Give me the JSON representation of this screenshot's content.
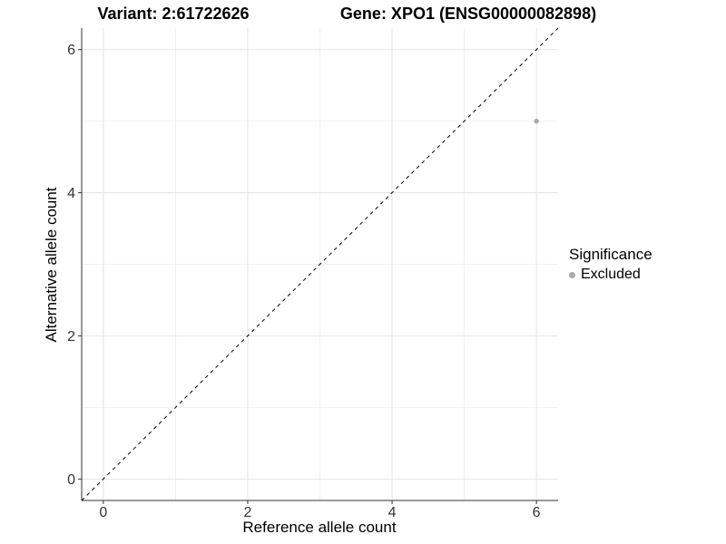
{
  "chart_data": {
    "type": "scatter",
    "title_left": "Variant: 2:61722626",
    "title_right": "Gene: XPO1 (ENSG00000082898)",
    "xlabel": "Reference allele count",
    "ylabel": "Alternative allele count",
    "xlim": [
      -0.3,
      6.3
    ],
    "ylim": [
      -0.3,
      6.3
    ],
    "x_ticks": [
      0,
      2,
      4,
      6
    ],
    "y_ticks": [
      0,
      2,
      4,
      6
    ],
    "x_minor_ticks": [
      1,
      3,
      5
    ],
    "y_minor_ticks": [
      1,
      3,
      5
    ],
    "grid": true,
    "reference_line": {
      "type": "identity",
      "style": "dashed",
      "color": "#000000"
    },
    "series": [
      {
        "name": "Excluded",
        "color": "#aaaaaa",
        "points": [
          {
            "x": 6,
            "y": 5
          }
        ]
      }
    ],
    "legend": {
      "title": "Significance",
      "position": "right",
      "entries": [
        {
          "label": "Excluded",
          "color": "#aaaaaa"
        }
      ]
    }
  },
  "colors": {
    "background": "#ffffff",
    "grid_major": "#e4e4e4",
    "grid_minor": "#f0f0f0",
    "axis_line": "#333333",
    "tick_text": "#333333",
    "title_text": "#000000"
  }
}
